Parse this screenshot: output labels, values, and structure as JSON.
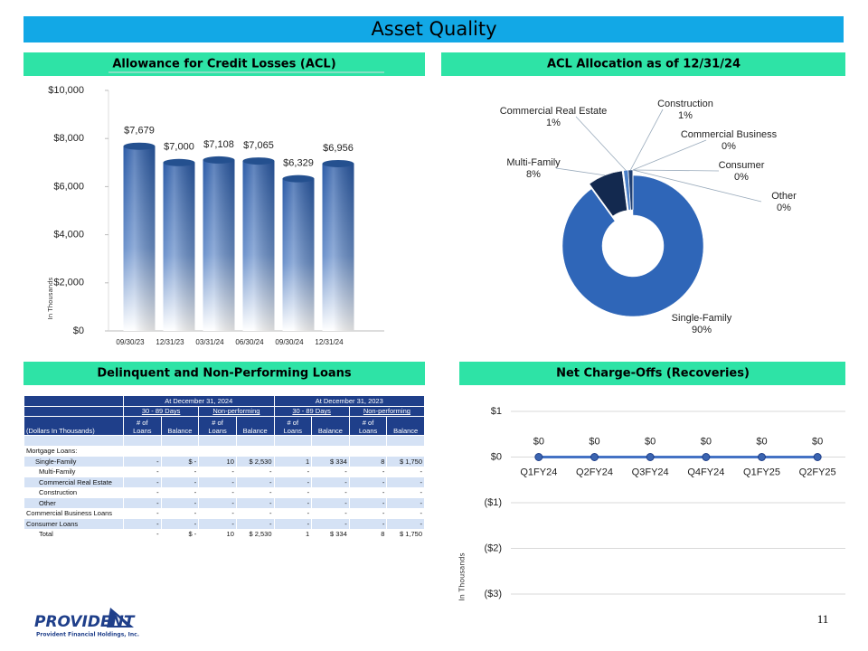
{
  "title": "Asset Quality",
  "chart_data": [
    {
      "type": "bar",
      "title": "Allowance for Credit Losses (ACL)",
      "y_label": "In Thousands",
      "categories": [
        "09/30/23",
        "12/31/23",
        "03/31/24",
        "06/30/24",
        "09/30/24",
        "12/31/24"
      ],
      "values": [
        7679,
        7000,
        7108,
        7065,
        6329,
        6956
      ],
      "value_labels": [
        "$7,679",
        "$7,000",
        "$7,108",
        "$7,065",
        "$6,329",
        "$6,956"
      ],
      "color": "#2f5ea8",
      "ylim": [
        0,
        10000
      ],
      "yticks": [
        {
          "value": 0,
          "label": "$0"
        },
        {
          "value": 2000,
          "label": "$2,000"
        },
        {
          "value": 4000,
          "label": "$4,000"
        },
        {
          "value": 6000,
          "label": "$6,000"
        },
        {
          "value": 8000,
          "label": "$8,000"
        },
        {
          "value": 10000,
          "label": "$10,000"
        }
      ],
      "grid": false
    },
    {
      "type": "pie",
      "title": "ACL Allocation as of 12/31/24",
      "categories": [
        "Single-Family",
        "Multi-Family",
        "Commercial Real Estate",
        "Construction",
        "Commercial Business",
        "Consumer",
        "Other"
      ],
      "values": [
        90,
        8,
        1,
        1,
        0,
        0,
        0
      ],
      "value_labels": [
        "90%",
        "8%",
        "1%",
        "1%",
        "0%",
        "0%",
        "0%"
      ],
      "colors": [
        "#2f66b8",
        "#13294f",
        "#4a7fc8",
        "#1f3f73",
        "#7aa0d8",
        "#5a86c8",
        "#9bb8e0"
      ]
    },
    {
      "type": "line",
      "title": "Net Charge-Offs (Recoveries)",
      "y_label": "In Thousands",
      "categories": [
        "Q1FY24",
        "Q2FY24",
        "Q3FY24",
        "Q4FY24",
        "Q1FY25",
        "Q2FY25"
      ],
      "values": [
        0,
        0,
        0,
        0,
        0,
        0
      ],
      "value_labels": [
        "$0",
        "$0",
        "$0",
        "$0",
        "$0",
        "$0"
      ],
      "color": "#4472c4",
      "ylim": [
        -3,
        1
      ],
      "yticks": [
        {
          "value": 1,
          "label": "$1"
        },
        {
          "value": 0,
          "label": "$0"
        },
        {
          "value": -1,
          "label": "($1)"
        },
        {
          "value": -2,
          "label": "($2)"
        },
        {
          "value": -3,
          "label": "($3)"
        }
      ],
      "grid": true
    }
  ],
  "table": {
    "title": "Delinquent and Non-Performing Loans",
    "period_headers": [
      "At December 31, 2024",
      "At December 31, 2023"
    ],
    "group_headers": [
      "30 - 89 Days",
      "Non-performing",
      "30 - 89 Days",
      "Non-performing"
    ],
    "label_header": "(Dollars In Thousands)",
    "column_headers": [
      "# of\nLoans",
      "Balance",
      "# of\nLoans",
      "Balance",
      "# of\nLoans",
      "Balance",
      "# of\nLoans",
      "Balance"
    ],
    "rows": [
      [
        "Mortgage Loans:"
      ],
      [
        "Single-Family",
        "-",
        "$ -",
        "10",
        "$ 2,530",
        "1",
        "$ 334",
        "8",
        "$ 1,750"
      ],
      [
        "Multi-Family",
        "-",
        "-",
        "-",
        "-",
        "-",
        "-",
        "-",
        "-"
      ],
      [
        "Commercial Real Estate",
        "-",
        "-",
        "-",
        "-",
        "-",
        "-",
        "-",
        "-"
      ],
      [
        "Construction",
        "-",
        "-",
        "-",
        "-",
        "-",
        "-",
        "-",
        "-"
      ],
      [
        "Other",
        "-",
        "-",
        "-",
        "-",
        "-",
        "-",
        "-",
        "-"
      ],
      [
        "Commercial Business Loans",
        "-",
        "-",
        "-",
        "-",
        "-",
        "-",
        "-",
        "-"
      ],
      [
        "Consumer Loans",
        "-",
        "-",
        "-",
        "-",
        "-",
        "-",
        "-",
        "-"
      ],
      [
        "Total",
        "-",
        "$ -",
        "10",
        "$ 2,530",
        "1",
        "$ 334",
        "8",
        "$ 1,750"
      ]
    ]
  },
  "footer": {
    "logo": "PROVIDENT",
    "company": "Provident Financial Holdings, Inc.",
    "page": "11"
  }
}
